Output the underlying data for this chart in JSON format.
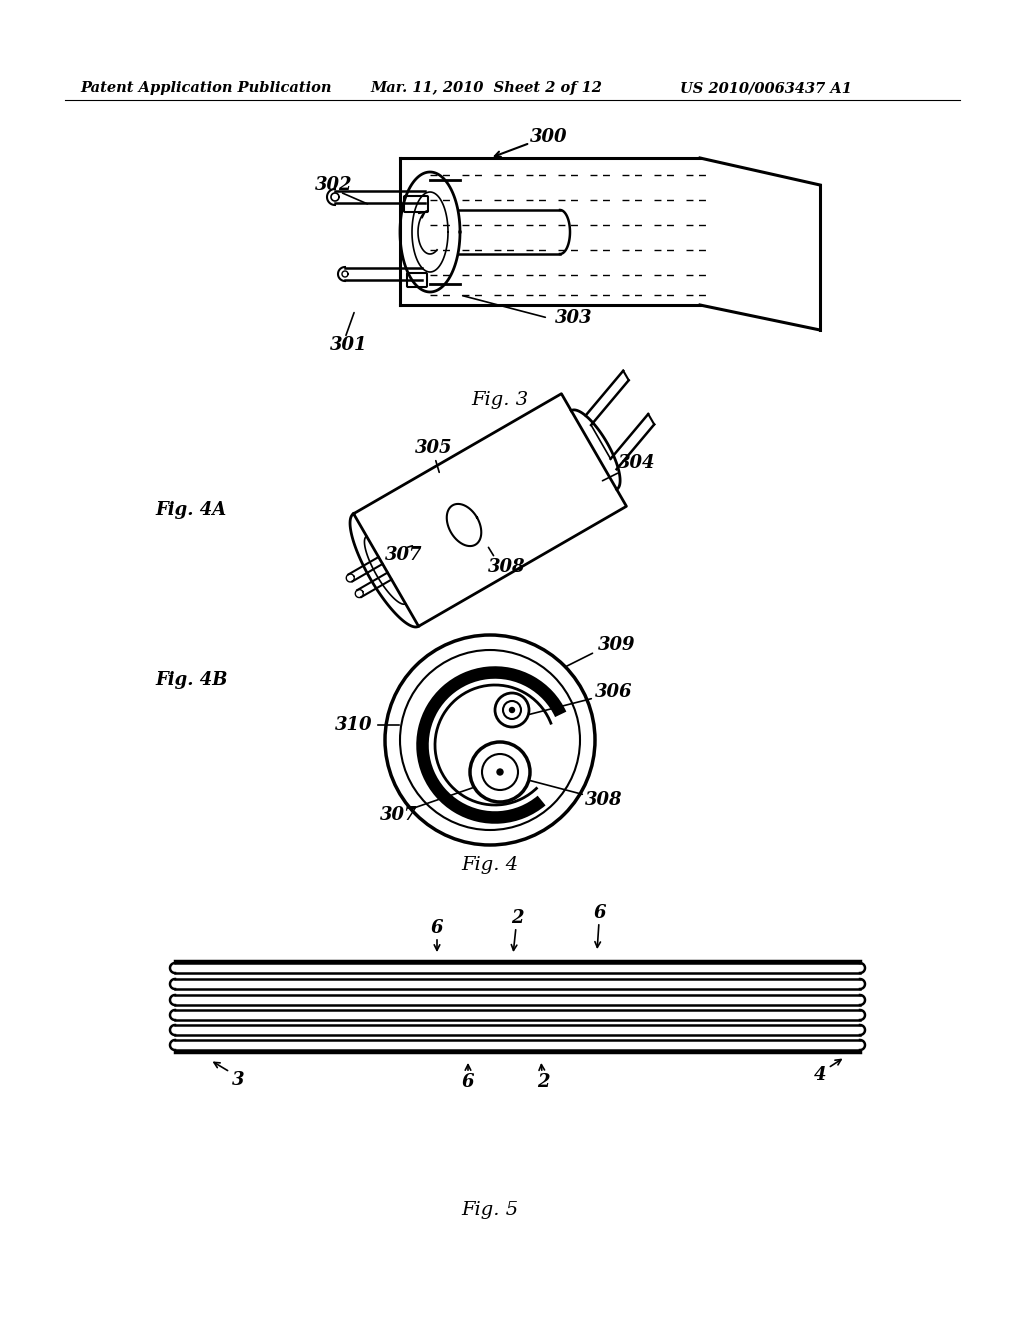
{
  "page_width": 10.24,
  "page_height": 13.2,
  "background_color": "#ffffff",
  "header_text_left": "Patent Application Publication",
  "header_text_mid": "Mar. 11, 2010  Sheet 2 of 12",
  "header_text_right": "US 2010/0063437 A1",
  "fig3_caption": "Fig. 3",
  "fig4_caption": "Fig. 4",
  "fig5_caption": "Fig. 5",
  "fig4a_label": "Fig. 4A",
  "fig4b_label": "Fig. 4B"
}
